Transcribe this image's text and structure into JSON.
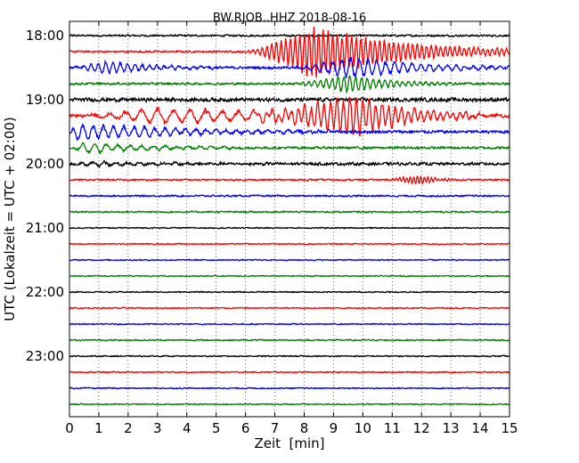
{
  "chart_data": {
    "type": "line",
    "title": "BW.RJOB..HHZ 2018-08-16",
    "xlabel": "Zeit  [min]",
    "ylabel": "UTC (Lokalzeit = UTC + 02:00)",
    "xlim": [
      0,
      15
    ],
    "x_ticks": [
      "0",
      "1",
      "2",
      "3",
      "4",
      "5",
      "6",
      "7",
      "8",
      "9",
      "10",
      "11",
      "12",
      "13",
      "14",
      "15"
    ],
    "y_ticks": [
      "18:00",
      "19:00",
      "20:00",
      "21:00",
      "22:00",
      "23:00"
    ],
    "grid": {
      "x": true,
      "y": false,
      "style": "dotted"
    },
    "trace_colors": [
      "#000000",
      "#ff0000",
      "#0000ff",
      "#008000"
    ],
    "series": [
      {
        "offset": "18:00",
        "color": "#000000",
        "noise": 0.08
      },
      {
        "offset": "18:15",
        "color": "#ff0000",
        "noise": 0.08,
        "events": [
          {
            "start": 5.8,
            "peak": 8.3,
            "end": 15,
            "amp": 1.4,
            "period": 0.16
          }
        ]
      },
      {
        "offset": "18:30",
        "color": "#0000ff",
        "noise": 0.1,
        "events": [
          {
            "start": 0,
            "peak": 1.2,
            "end": 5,
            "amp": 0.35,
            "period": 0.25
          },
          {
            "start": 7.5,
            "peak": 9.5,
            "end": 15,
            "amp": 0.6,
            "period": 0.3
          }
        ]
      },
      {
        "offset": "18:45",
        "color": "#008000",
        "noise": 0.09,
        "events": [
          {
            "start": 7.5,
            "peak": 9.4,
            "end": 13,
            "amp": 0.5,
            "period": 0.2
          }
        ]
      },
      {
        "offset": "19:00",
        "color": "#000000",
        "noise": 0.15
      },
      {
        "offset": "19:15",
        "color": "#ff0000",
        "noise": 0.12,
        "events": [
          {
            "start": 0,
            "peak": 3,
            "end": 15,
            "amp": 0.45,
            "period": 0.55
          },
          {
            "start": 5.5,
            "peak": 9.6,
            "end": 14,
            "amp": 1.1,
            "period": 0.22
          }
        ]
      },
      {
        "offset": "19:30",
        "color": "#0000ff",
        "noise": 0.12,
        "events": [
          {
            "start": 0,
            "peak": 0.2,
            "end": 9,
            "amp": 0.45,
            "period": 0.35
          }
        ]
      },
      {
        "offset": "19:45",
        "color": "#008000",
        "noise": 0.1,
        "events": [
          {
            "start": 0,
            "peak": 0.5,
            "end": 6,
            "amp": 0.3,
            "period": 0.4
          }
        ]
      },
      {
        "offset": "20:00",
        "color": "#000000",
        "noise": 0.12,
        "events": [
          {
            "start": 0,
            "peak": 1,
            "end": 7,
            "amp": 0.12,
            "period": 0.4
          }
        ]
      },
      {
        "offset": "20:15",
        "color": "#ff0000",
        "noise": 0.07,
        "events": [
          {
            "start": 10.5,
            "peak": 11.8,
            "end": 13.5,
            "amp": 0.25,
            "period": 0.12
          }
        ]
      },
      {
        "offset": "20:30",
        "color": "#0000ff",
        "noise": 0.07
      },
      {
        "offset": "20:45",
        "color": "#008000",
        "noise": 0.07
      },
      {
        "offset": "21:00",
        "color": "#000000",
        "noise": 0.05
      },
      {
        "offset": "21:15",
        "color": "#ff0000",
        "noise": 0.05
      },
      {
        "offset": "21:30",
        "color": "#0000ff",
        "noise": 0.05
      },
      {
        "offset": "21:45",
        "color": "#008000",
        "noise": 0.05
      },
      {
        "offset": "22:00",
        "color": "#000000",
        "noise": 0.05
      },
      {
        "offset": "22:15",
        "color": "#ff0000",
        "noise": 0.05
      },
      {
        "offset": "22:30",
        "color": "#0000ff",
        "noise": 0.05
      },
      {
        "offset": "22:45",
        "color": "#008000",
        "noise": 0.06
      },
      {
        "offset": "23:00",
        "color": "#000000",
        "noise": 0.05
      },
      {
        "offset": "23:15",
        "color": "#ff0000",
        "noise": 0.05
      },
      {
        "offset": "23:30",
        "color": "#0000ff",
        "noise": 0.05
      },
      {
        "offset": "23:45",
        "color": "#008000",
        "noise": 0.05
      }
    ]
  }
}
